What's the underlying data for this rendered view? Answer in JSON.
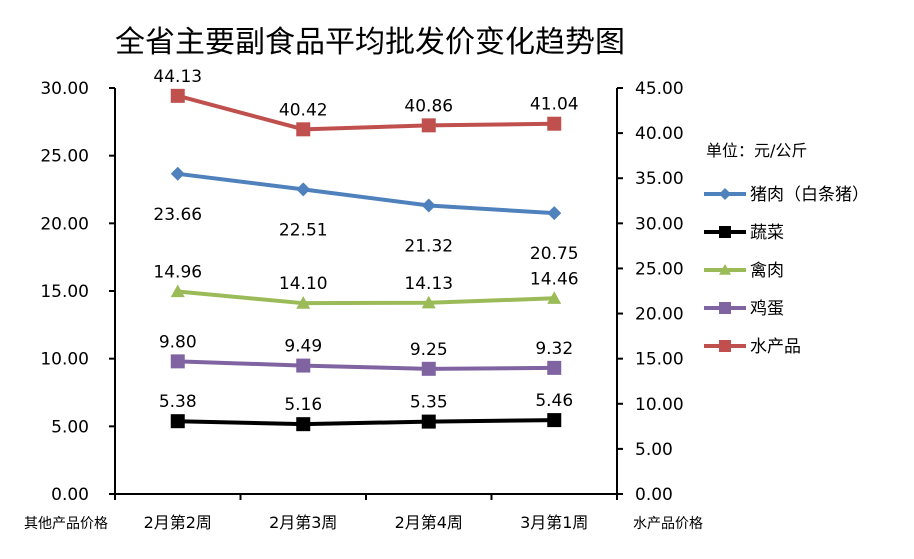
{
  "chart_data": {
    "type": "line",
    "title": "全省主要副食品平均批发价变化趋势图",
    "categories": [
      "2月第2周",
      "2月第3周",
      "2月第4周",
      "3月第1周"
    ],
    "left_axis": {
      "label": "其他产品价格",
      "ylim": [
        0,
        30
      ],
      "ticks": [
        "0.00",
        "5.00",
        "10.00",
        "15.00",
        "20.00",
        "25.00",
        "30.00"
      ]
    },
    "right_axis": {
      "label": "水产品价格",
      "ylim": [
        0,
        45
      ],
      "ticks": [
        "0.00",
        "5.00",
        "10.00",
        "15.00",
        "20.00",
        "25.00",
        "30.00",
        "35.00",
        "40.00",
        "45.00"
      ]
    },
    "unit_note": "单位：元/公斤",
    "grid": false,
    "legend_placement": "right",
    "series": [
      {
        "name": "猪肉（白条猪）",
        "values": [
          23.66,
          22.51,
          21.32,
          20.75
        ],
        "labels": [
          "23.66",
          "22.51",
          "21.32",
          "20.75"
        ],
        "axis": "left",
        "color": "#4F81BD",
        "marker": "diamond",
        "label_pos": "below"
      },
      {
        "name": "蔬菜",
        "values": [
          5.38,
          5.16,
          5.35,
          5.46
        ],
        "labels": [
          "5.38",
          "5.16",
          "5.35",
          "5.46"
        ],
        "axis": "left",
        "color": "#000000",
        "marker": "square",
        "label_pos": "above"
      },
      {
        "name": "禽肉",
        "values": [
          14.96,
          14.1,
          14.13,
          14.46
        ],
        "labels": [
          "14.96",
          "14.10",
          "14.13",
          "14.46"
        ],
        "axis": "left",
        "color": "#9BBB59",
        "marker": "triangle",
        "label_pos": "above"
      },
      {
        "name": "鸡蛋",
        "values": [
          9.8,
          9.49,
          9.25,
          9.32
        ],
        "labels": [
          "9.80",
          "9.49",
          "9.25",
          "9.32"
        ],
        "axis": "left",
        "color": "#8064A2",
        "marker": "square",
        "label_pos": "above"
      },
      {
        "name": "水产品",
        "values": [
          44.13,
          40.42,
          40.86,
          41.04
        ],
        "labels": [
          "44.13",
          "40.42",
          "40.86",
          "41.04"
        ],
        "axis": "right",
        "color": "#C0504D",
        "marker": "square",
        "label_pos": "above"
      }
    ]
  }
}
